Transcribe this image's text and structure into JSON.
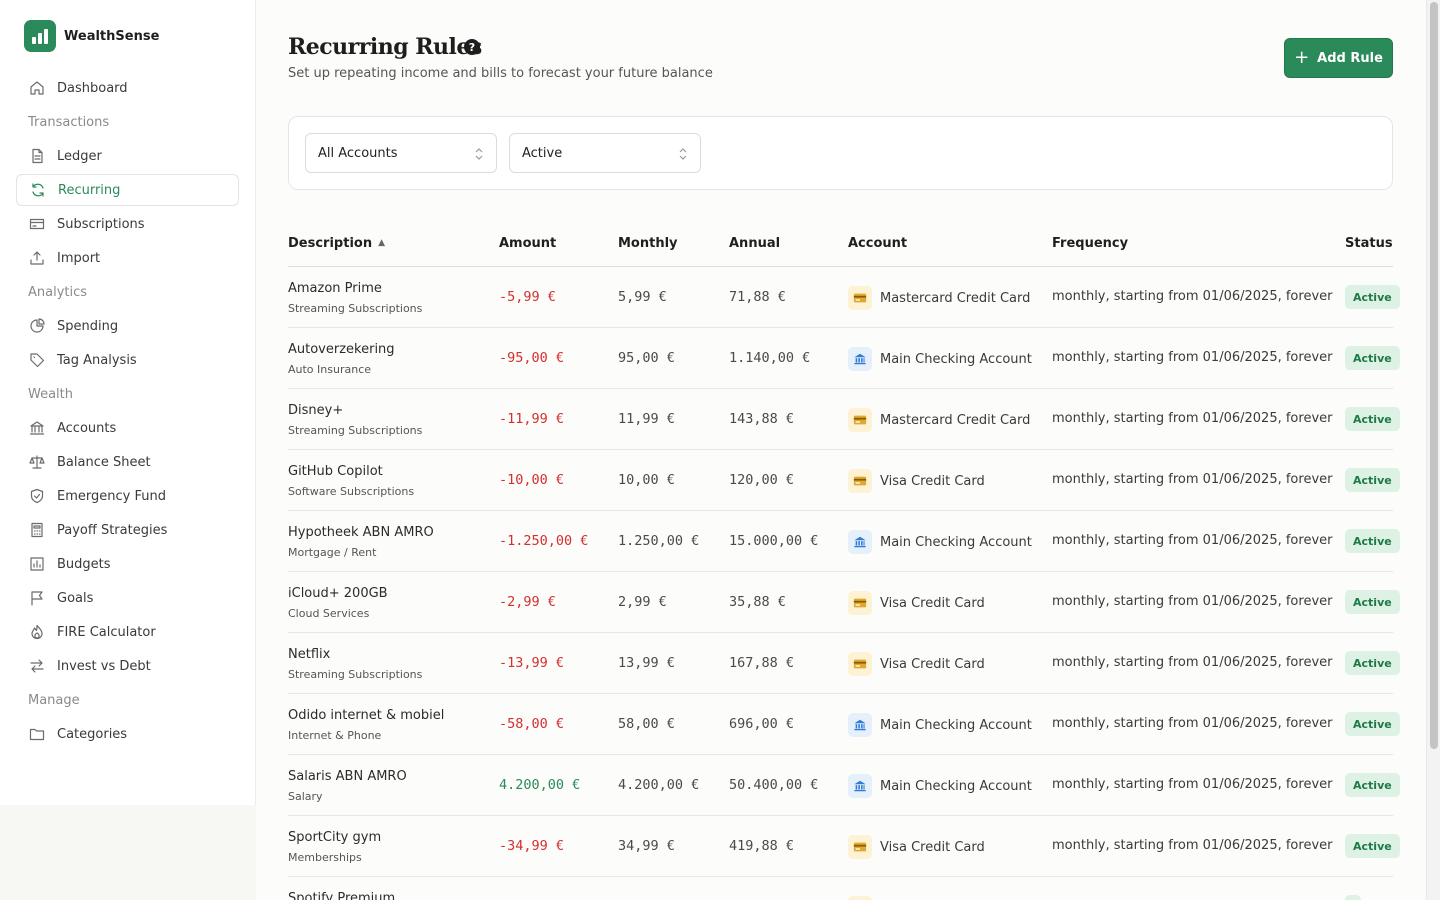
{
  "app": {
    "name": "WealthSense"
  },
  "sidebar": {
    "items": [
      {
        "type": "item",
        "label": "Dashboard",
        "icon": "home-icon",
        "name": "sidebar-item-dashboard"
      },
      {
        "type": "section",
        "label": "Transactions",
        "name": "sidebar-section-transactions"
      },
      {
        "type": "item",
        "label": "Ledger",
        "icon": "document-icon",
        "name": "sidebar-item-ledger"
      },
      {
        "type": "item",
        "label": "Recurring",
        "icon": "refresh-icon",
        "name": "sidebar-item-recurring",
        "active": true
      },
      {
        "type": "item",
        "label": "Subscriptions",
        "icon": "card-icon",
        "name": "sidebar-item-subscriptions"
      },
      {
        "type": "item",
        "label": "Import",
        "icon": "upload-icon",
        "name": "sidebar-item-import"
      },
      {
        "type": "section",
        "label": "Analytics",
        "name": "sidebar-section-analytics"
      },
      {
        "type": "item",
        "label": "Spending",
        "icon": "pie-chart-icon",
        "name": "sidebar-item-spending"
      },
      {
        "type": "item",
        "label": "Tag Analysis",
        "icon": "tag-icon",
        "name": "sidebar-item-tag-analysis"
      },
      {
        "type": "section",
        "label": "Wealth",
        "name": "sidebar-section-wealth"
      },
      {
        "type": "item",
        "label": "Accounts",
        "icon": "bank-icon",
        "name": "sidebar-item-accounts"
      },
      {
        "type": "item",
        "label": "Balance Sheet",
        "icon": "scale-icon",
        "name": "sidebar-item-balance-sheet"
      },
      {
        "type": "item",
        "label": "Emergency Fund",
        "icon": "shield-icon",
        "name": "sidebar-item-emergency-fund"
      },
      {
        "type": "item",
        "label": "Payoff Strategies",
        "icon": "calculator-icon",
        "name": "sidebar-item-payoff-strategies"
      },
      {
        "type": "item",
        "label": "Budgets",
        "icon": "budget-icon",
        "name": "sidebar-item-budgets"
      },
      {
        "type": "item",
        "label": "Goals",
        "icon": "flag-icon",
        "name": "sidebar-item-goals"
      },
      {
        "type": "item",
        "label": "FIRE Calculator",
        "icon": "flame-icon",
        "name": "sidebar-item-fire-calculator"
      },
      {
        "type": "item",
        "label": "Invest vs Debt",
        "icon": "arrows-icon",
        "name": "sidebar-item-invest-vs-debt"
      },
      {
        "type": "section",
        "label": "Manage",
        "name": "sidebar-section-manage"
      },
      {
        "type": "item",
        "label": "Categories",
        "icon": "folder-icon",
        "name": "sidebar-item-categories"
      }
    ]
  },
  "header": {
    "title": "Recurring Rules",
    "help": "?",
    "subtitle": "Set up repeating income and bills to forecast your future balance",
    "add_button": "Add Rule",
    "add_plus": "+"
  },
  "filters": {
    "account": "All Accounts",
    "status": "Active"
  },
  "table": {
    "headers": {
      "description": "Description",
      "amount": "Amount",
      "monthly": "Monthly",
      "annual": "Annual",
      "account": "Account",
      "frequency": "Frequency",
      "status": "Status"
    },
    "rows": [
      {
        "name": "Amazon Prime",
        "category": "Streaming Subscriptions",
        "amount": "-5,99 €",
        "sign": "neg",
        "monthly": "5,99 €",
        "annual": "71,88 €",
        "account": "Mastercard Credit Card",
        "account_icon": "credit-card-icon",
        "frequency": "monthly, starting from 01/06/2025, forever",
        "status": "Active"
      },
      {
        "name": "Autoverzekering",
        "category": "Auto Insurance",
        "amount": "-95,00 €",
        "sign": "neg",
        "monthly": "95,00 €",
        "annual": "1.140,00 €",
        "account": "Main Checking Account",
        "account_icon": "bank-icon",
        "frequency": "monthly, starting from 01/06/2025, forever",
        "status": "Active"
      },
      {
        "name": "Disney+",
        "category": "Streaming Subscriptions",
        "amount": "-11,99 €",
        "sign": "neg",
        "monthly": "11,99 €",
        "annual": "143,88 €",
        "account": "Mastercard Credit Card",
        "account_icon": "credit-card-icon",
        "frequency": "monthly, starting from 01/06/2025, forever",
        "status": "Active"
      },
      {
        "name": "GitHub Copilot",
        "category": "Software Subscriptions",
        "amount": "-10,00 €",
        "sign": "neg",
        "monthly": "10,00 €",
        "annual": "120,00 €",
        "account": "Visa Credit Card",
        "account_icon": "credit-card-icon",
        "frequency": "monthly, starting from 01/06/2025, forever",
        "status": "Active"
      },
      {
        "name": "Hypotheek ABN AMRO",
        "category": "Mortgage / Rent",
        "amount": "-1.250,00 €",
        "sign": "neg",
        "monthly": "1.250,00 €",
        "annual": "15.000,00 €",
        "account": "Main Checking Account",
        "account_icon": "bank-icon",
        "frequency": "monthly, starting from 01/06/2025, forever",
        "status": "Active"
      },
      {
        "name": "iCloud+ 200GB",
        "category": "Cloud Services",
        "amount": "-2,99 €",
        "sign": "neg",
        "monthly": "2,99 €",
        "annual": "35,88 €",
        "account": "Visa Credit Card",
        "account_icon": "credit-card-icon",
        "frequency": "monthly, starting from 01/06/2025, forever",
        "status": "Active"
      },
      {
        "name": "Netflix",
        "category": "Streaming Subscriptions",
        "amount": "-13,99 €",
        "sign": "neg",
        "monthly": "13,99 €",
        "annual": "167,88 €",
        "account": "Visa Credit Card",
        "account_icon": "credit-card-icon",
        "frequency": "monthly, starting from 01/06/2025, forever",
        "status": "Active"
      },
      {
        "name": "Odido internet & mobiel",
        "category": "Internet & Phone",
        "amount": "-58,00 €",
        "sign": "neg",
        "monthly": "58,00 €",
        "annual": "696,00 €",
        "account": "Main Checking Account",
        "account_icon": "bank-icon",
        "frequency": "monthly, starting from 01/06/2025, forever",
        "status": "Active"
      },
      {
        "name": "Salaris ABN AMRO",
        "category": "Salary",
        "amount": "4.200,00 €",
        "sign": "pos",
        "monthly": "4.200,00 €",
        "annual": "50.400,00 €",
        "account": "Main Checking Account",
        "account_icon": "bank-icon",
        "frequency": "monthly, starting from 01/06/2025, forever",
        "status": "Active"
      },
      {
        "name": "SportCity gym",
        "category": "Memberships",
        "amount": "-34,99 €",
        "sign": "neg",
        "monthly": "34,99 €",
        "annual": "419,88 €",
        "account": "Visa Credit Card",
        "account_icon": "credit-card-icon",
        "frequency": "monthly, starting from 01/06/2025, forever",
        "status": "Active"
      },
      {
        "name": "Spotify Premium",
        "category": "",
        "amount": "",
        "sign": "neg",
        "monthly": "",
        "annual": "",
        "account": "",
        "account_icon": "credit-card-icon",
        "frequency": "",
        "status": ""
      }
    ]
  },
  "colors": {
    "accent": "#2a8a5a",
    "negative": "#d32f2f",
    "badge_bg": "#ddf1e4",
    "badge_text": "#1f7a47"
  }
}
